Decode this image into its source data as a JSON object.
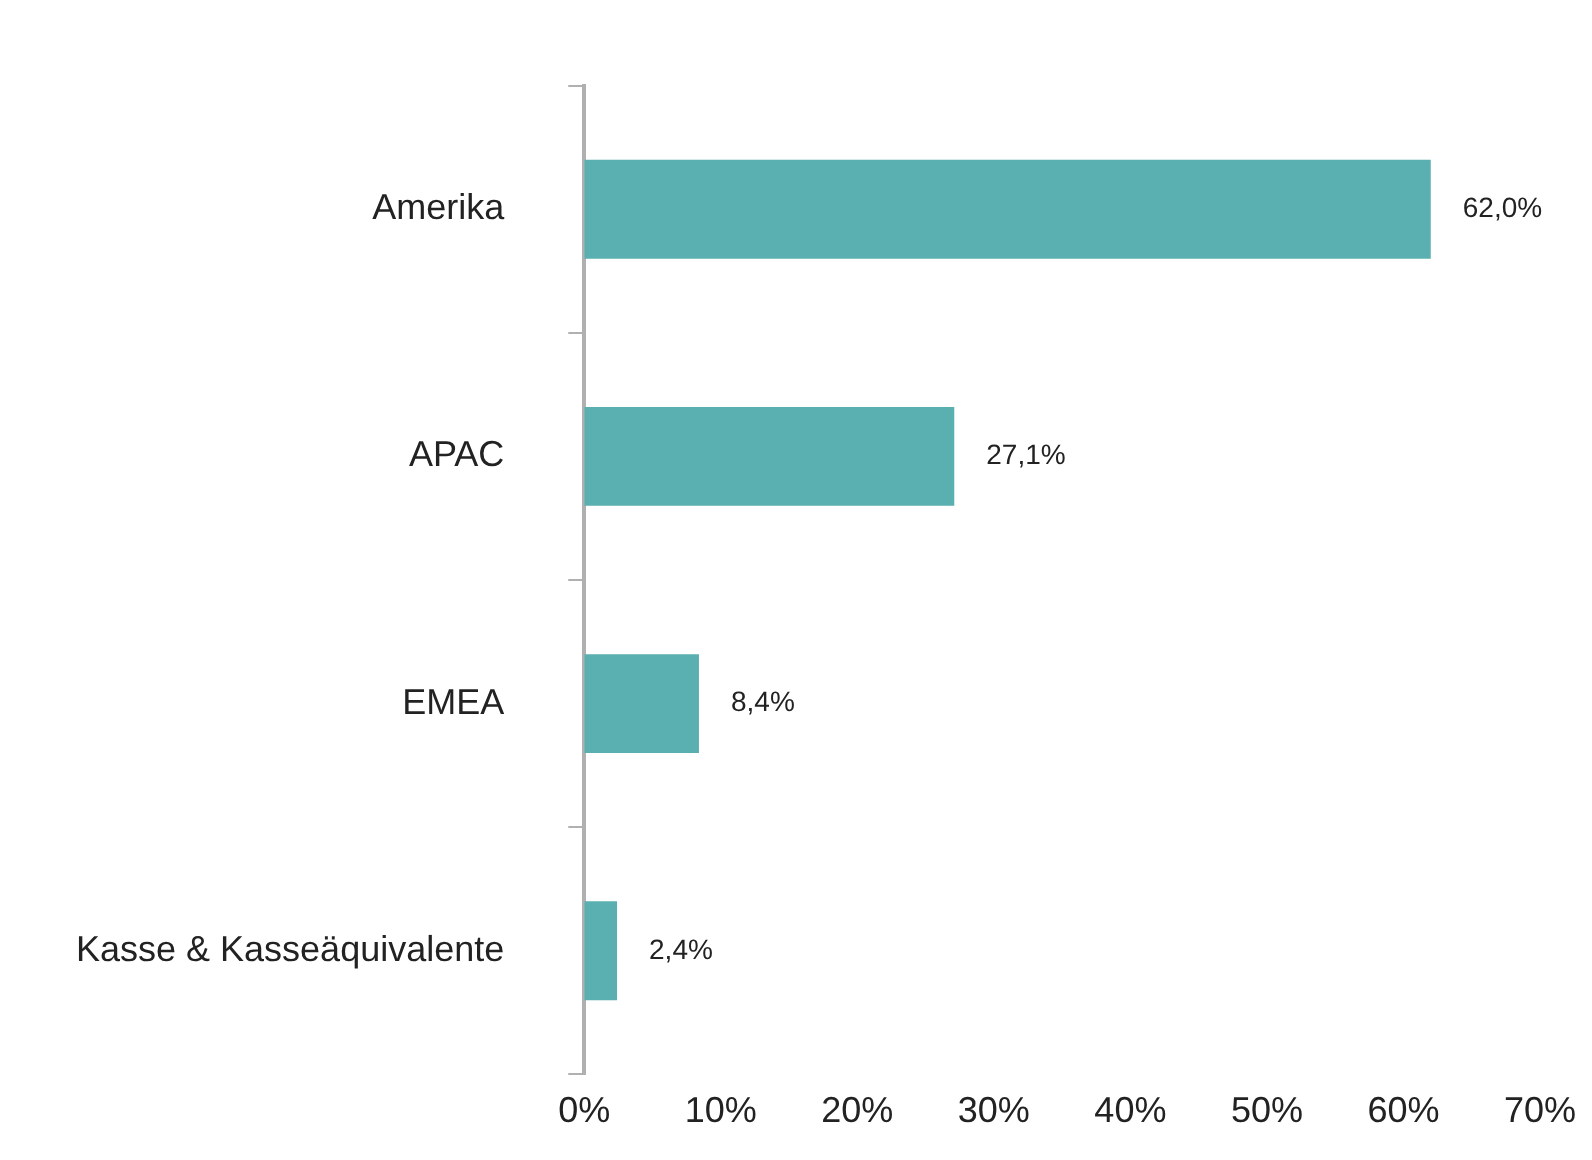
{
  "chart_data": {
    "type": "bar",
    "orientation": "horizontal",
    "categories": [
      "Amerika",
      "APAC",
      "EMEA",
      "Kasse & Kasseäquivalente"
    ],
    "values": [
      62.0,
      27.1,
      8.4,
      2.4
    ],
    "value_labels": [
      "62,0%",
      "27,1%",
      "8,4%",
      "2,4%"
    ],
    "color": "#5aafb0",
    "xlim": [
      0,
      70
    ],
    "xticks": [
      {
        "value": 0,
        "label": "0%"
      },
      {
        "value": 10,
        "label": "10%"
      },
      {
        "value": 20,
        "label": "20%"
      },
      {
        "value": 30,
        "label": "30%"
      },
      {
        "value": 40,
        "label": "40%"
      },
      {
        "value": 50,
        "label": "50%"
      },
      {
        "value": 60,
        "label": "60%"
      },
      {
        "value": 70,
        "label": "70%"
      }
    ],
    "grid": false,
    "legend": false
  }
}
